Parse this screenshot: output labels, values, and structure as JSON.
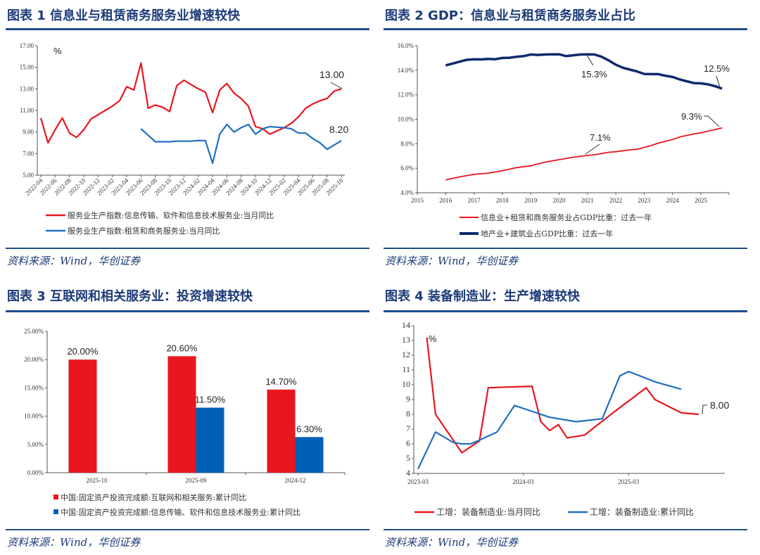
{
  "source": "资料来源：Wind，华创证券",
  "colors": {
    "red": "#e8161e",
    "blue": "#1f6fc0",
    "navy": "#0e2a6b",
    "bar_blue": "#0060b8",
    "rule": "#1f4e8c"
  },
  "chart_data": [
    {
      "type": "line",
      "title": "图表 1   信息业与租赁商务服务业增速较快",
      "unit": "%",
      "ylim": [
        5,
        17
      ],
      "yticks": [
        "5.00",
        "7.00",
        "9.00",
        "11.00",
        "13.00",
        "15.00",
        "17.00"
      ],
      "x": [
        "2022-04",
        "2022-05",
        "2022-06",
        "2022-07",
        "2022-08",
        "2022-09",
        "2022-10",
        "2022-11",
        "2022-12",
        "2023-01",
        "2023-02",
        "2023-03",
        "2023-04",
        "2023-05",
        "2023-06",
        "2023-07",
        "2023-08",
        "2023-09",
        "2023-10",
        "2023-11",
        "2023-12",
        "2024-01",
        "2024-02",
        "2024-03",
        "2024-04",
        "2024-05",
        "2024-06",
        "2024-07",
        "2024-08",
        "2024-09",
        "2024-10",
        "2024-11",
        "2024-12",
        "2025-01",
        "2025-02",
        "2025-03",
        "2025-04",
        "2025-05",
        "2025-06",
        "2025-07",
        "2025-08",
        "2025-09",
        "2025-10"
      ],
      "series": [
        {
          "name": "服务业生产指数:信息传输、软件和信息技术服务业:当月同比",
          "color": "#e8161e",
          "values": [
            10.3,
            8.0,
            9.2,
            10.3,
            8.9,
            8.5,
            9.2,
            10.2,
            10.6,
            11.0,
            11.4,
            11.9,
            13.2,
            12.9,
            15.4,
            11.2,
            11.5,
            11.3,
            10.9,
            13.3,
            13.8,
            13.4,
            13.0,
            12.7,
            10.8,
            12.9,
            13.5,
            12.6,
            12.1,
            11.4,
            9.5,
            9.3,
            8.8,
            9.1,
            9.4,
            9.8,
            10.4,
            11.2,
            11.6,
            11.9,
            12.1,
            12.8,
            13.0
          ]
        },
        {
          "name": "服务业生产指数:租赁和商务服务业:当月同比",
          "color": "#1f6fc0",
          "values": [
            null,
            null,
            null,
            null,
            null,
            null,
            null,
            null,
            null,
            null,
            null,
            null,
            null,
            null,
            9.3,
            8.7,
            8.1,
            8.1,
            8.1,
            8.15,
            8.15,
            8.15,
            8.2,
            8.2,
            6.1,
            8.8,
            9.7,
            9.0,
            9.4,
            9.7,
            8.8,
            9.3,
            9.5,
            9.45,
            9.4,
            9.3,
            8.9,
            8.9,
            8.4,
            8.0,
            7.4,
            7.8,
            8.2
          ]
        }
      ],
      "annotations": [
        "13.00",
        "8.20"
      ]
    },
    {
      "type": "line",
      "title": "图表 2   GDP：信息业与租赁商务服务业占比",
      "ylim": [
        4,
        16
      ],
      "yticks": [
        "4.0%",
        "6.0%",
        "8.0%",
        "10.0%",
        "12.0%",
        "14.0%",
        "16.0%"
      ],
      "xlim": [
        2015,
        2026
      ],
      "xticks": [
        "2015",
        "2016",
        "2017",
        "2018",
        "2019",
        "2020",
        "2021",
        "2022",
        "2023",
        "2024",
        "2025"
      ],
      "series": [
        {
          "name": "信息业+租赁和商务服务业占GDP比重：过去一年",
          "color": "#e8161e",
          "x": [
            2016.0,
            2016.5,
            2017.0,
            2017.5,
            2018.0,
            2018.5,
            2019.0,
            2019.5,
            2020.0,
            2020.5,
            2021.0,
            2021.25,
            2021.75,
            2022.0,
            2022.5,
            2022.75,
            2023.0,
            2023.25,
            2023.5,
            2024.0,
            2024.25,
            2024.75,
            2025.0,
            2025.5,
            2025.75
          ],
          "values": [
            5.05,
            5.3,
            5.5,
            5.6,
            5.8,
            6.05,
            6.2,
            6.5,
            6.7,
            6.9,
            7.05,
            7.1,
            7.3,
            7.35,
            7.5,
            7.55,
            7.7,
            7.85,
            8.05,
            8.35,
            8.55,
            8.8,
            8.9,
            9.15,
            9.3
          ]
        },
        {
          "name": "地产业+建筑业占GDP比重：过去一年",
          "color": "#0e2a6b",
          "x": [
            2016.0,
            2016.25,
            2016.5,
            2016.75,
            2017.0,
            2017.25,
            2017.5,
            2017.75,
            2018.0,
            2018.25,
            2018.5,
            2018.75,
            2019.0,
            2019.25,
            2019.5,
            2019.75,
            2020.0,
            2020.25,
            2020.5,
            2020.75,
            2021.0,
            2021.25,
            2021.5,
            2021.75,
            2022.0,
            2022.25,
            2022.5,
            2022.75,
            2023.0,
            2023.25,
            2023.5,
            2023.75,
            2024.0,
            2024.25,
            2024.5,
            2024.75,
            2025.0,
            2025.25,
            2025.5,
            2025.75
          ],
          "values": [
            14.4,
            14.55,
            14.7,
            14.85,
            14.9,
            14.88,
            14.92,
            14.9,
            15.0,
            15.02,
            15.1,
            15.15,
            15.28,
            15.25,
            15.28,
            15.3,
            15.3,
            15.15,
            15.22,
            15.28,
            15.3,
            15.28,
            15.1,
            14.8,
            14.45,
            14.2,
            14.05,
            13.9,
            13.7,
            13.68,
            13.68,
            13.55,
            13.45,
            13.25,
            13.1,
            12.95,
            12.93,
            12.85,
            12.7,
            12.5
          ]
        }
      ],
      "annotations": [
        "15.3%",
        "12.5%",
        "9.3%",
        "7.1%"
      ]
    },
    {
      "type": "bar",
      "title": "图表 3   互联网和相关服务业：投资增速较快",
      "ylim": [
        0,
        25
      ],
      "yticks": [
        "0.00%",
        "5.00%",
        "10.00%",
        "15.00%",
        "20.00%",
        "25.00%"
      ],
      "categories": [
        "2025-10",
        "2025-09",
        "2024-12"
      ],
      "series": [
        {
          "name": "中国:固定资产投资完成额:互联网和相关服务:累计同比",
          "color": "#e8161e",
          "values": [
            20.0,
            20.6,
            14.7
          ],
          "labels": [
            "20.00%",
            "20.60%",
            "14.70%"
          ]
        },
        {
          "name": "中国:固定资产投资完成额:信息传输、软件和信息技术服务业:累计同比",
          "color": "#0060b8",
          "values": [
            null,
            11.5,
            6.3
          ],
          "labels": [
            "",
            "11.50%",
            "6.30%"
          ]
        }
      ]
    },
    {
      "type": "line",
      "title": "图表 4   装备制造业：生产增速较快",
      "unit": "%",
      "ylim": [
        4,
        14
      ],
      "yticks": [
        "4",
        "5",
        "6",
        "7",
        "8",
        "9",
        "10",
        "11",
        "12",
        "13",
        "14"
      ],
      "x_start": "2023-03",
      "xticks": [
        "2023-03",
        "2024-03",
        "2025-03"
      ],
      "series": [
        {
          "name": "工增：装备制造业:当月同比",
          "color": "#e8161e",
          "x": [
            "2023-04",
            "2023-05",
            "2023-08",
            "2023-10",
            "2023-11",
            "2024-04",
            "2024-05",
            "2024-06",
            "2024-07",
            "2024-08",
            "2024-10",
            "2025-01",
            "2025-05",
            "2025-06",
            "2025-09",
            "2025-11"
          ],
          "values": [
            13.2,
            8.0,
            5.4,
            6.2,
            9.8,
            9.9,
            7.5,
            6.9,
            7.3,
            6.4,
            6.6,
            8.0,
            9.8,
            9.0,
            8.1,
            8.0
          ]
        },
        {
          "name": "工增：装备制造业:累计同比",
          "color": "#1f6fc0",
          "x": [
            "2023-03",
            "2023-05",
            "2023-07",
            "2023-08",
            "2023-09",
            "2023-10",
            "2023-12",
            "2024-02",
            "2024-06",
            "2024-09",
            "2024-12",
            "2025-02",
            "2025-03",
            "2025-06",
            "2025-09"
          ],
          "values": [
            4.3,
            6.8,
            6.1,
            6.0,
            6.0,
            6.25,
            6.8,
            8.6,
            7.8,
            7.5,
            7.7,
            10.6,
            10.9,
            10.2,
            9.7
          ]
        }
      ],
      "annotations": [
        "8.00"
      ]
    }
  ]
}
